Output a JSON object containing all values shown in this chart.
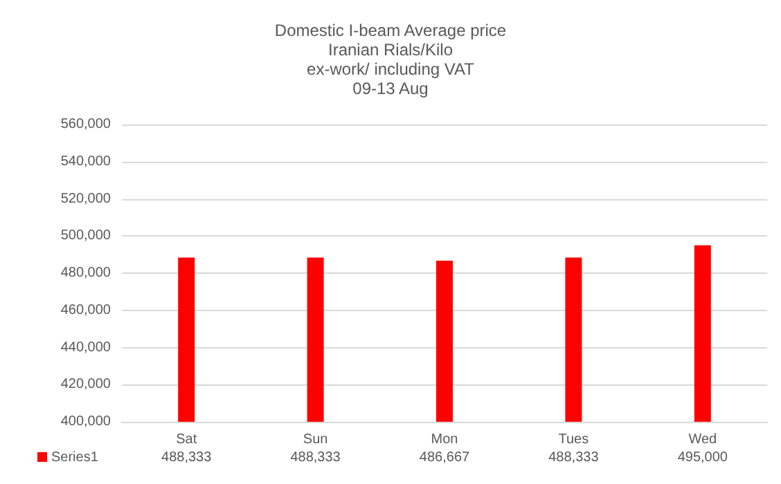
{
  "chart_data": {
    "type": "bar",
    "title": "Domestic I-beam Average price\nIranian Rials/Kilo\nex-work/ including VAT\n09-13 Aug",
    "categories": [
      "Sat",
      "Sun",
      "Mon",
      "Tues",
      "Wed"
    ],
    "series": [
      {
        "name": "Series1",
        "color": "#ff0000",
        "values": [
          488333,
          488333,
          486667,
          488333,
          495000
        ],
        "value_labels": [
          "488,333",
          "488,333",
          "486,667",
          "488,333",
          "495,000"
        ]
      }
    ],
    "ylim": [
      400000,
      560000
    ],
    "yticks": [
      {
        "value": 400000,
        "label": "400,000"
      },
      {
        "value": 420000,
        "label": "420,000"
      },
      {
        "value": 440000,
        "label": "440,000"
      },
      {
        "value": 460000,
        "label": "460,000"
      },
      {
        "value": 480000,
        "label": "480,000"
      },
      {
        "value": 500000,
        "label": "500,000"
      },
      {
        "value": 520000,
        "label": "520,000"
      },
      {
        "value": 540000,
        "label": "540,000"
      },
      {
        "value": 560000,
        "label": "560,000"
      }
    ],
    "grid": "y"
  }
}
